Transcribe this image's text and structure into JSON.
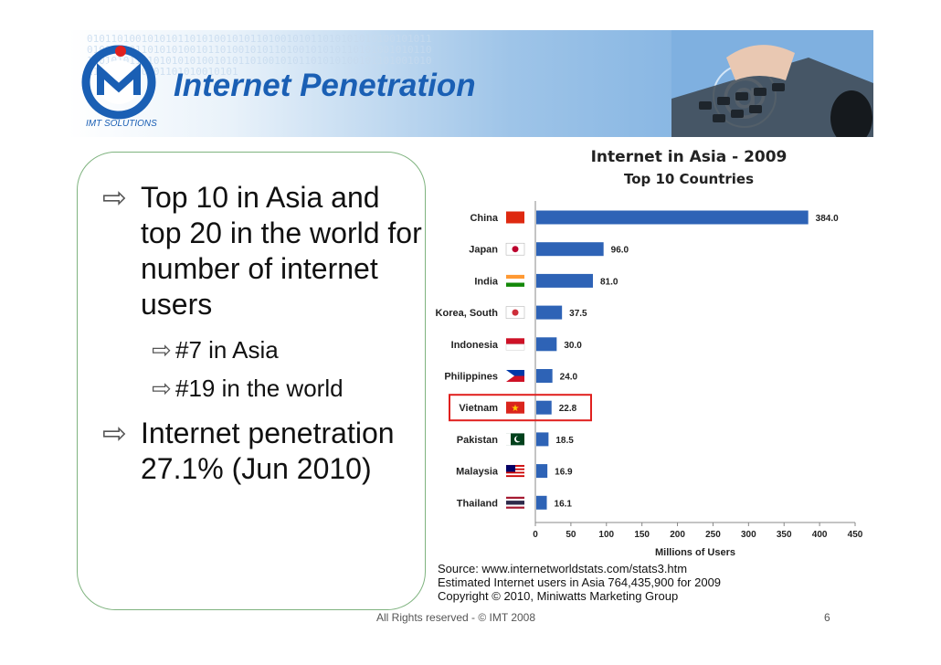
{
  "slide": {
    "title": "Internet Penetration",
    "logo_text": "IMT SOLUTIONS",
    "footer": "All Rights reserved -  © IMT 2008",
    "page_number": "6"
  },
  "bullets": [
    {
      "text": "Top 10 in Asia and top 20 in the world for number of internet users",
      "sub": [
        "#7 in Asia",
        "#19 in the world"
      ]
    },
    {
      "text": "Internet penetration 27.1% (Jun 2010)",
      "sub": []
    }
  ],
  "chart_data": {
    "type": "bar",
    "orientation": "horizontal",
    "title": "Internet in Asia - 2009",
    "subtitle": "Top 10 Countries",
    "xlabel": "Millions of Users",
    "xlim": [
      0,
      450
    ],
    "xticks": [
      0,
      50,
      100,
      150,
      200,
      250,
      300,
      350,
      400,
      450
    ],
    "categories": [
      "China",
      "Japan",
      "India",
      "Korea, South",
      "Indonesia",
      "Philippines",
      "Vietnam",
      "Pakistan",
      "Malaysia",
      "Thailand"
    ],
    "values": [
      384.0,
      96.0,
      81.0,
      37.5,
      30.0,
      24.0,
      22.8,
      18.5,
      16.9,
      16.1
    ],
    "value_labels": [
      "384.0",
      "96.0",
      "81.0",
      "37.5",
      "30.0",
      "24.0",
      "22.8",
      "18.5",
      "16.9",
      "16.1"
    ],
    "highlight": "Vietnam",
    "bar_color": "#2e63b6",
    "highlight_color": "#e0201e",
    "grid": false
  },
  "source_lines": [
    "Source: www.internetworldstats.com/stats3.htm",
    "Estimated Internet users in Asia 764,435,900 for 2009",
    "Copyright © 2010, Miniwatts Marketing Group"
  ]
}
